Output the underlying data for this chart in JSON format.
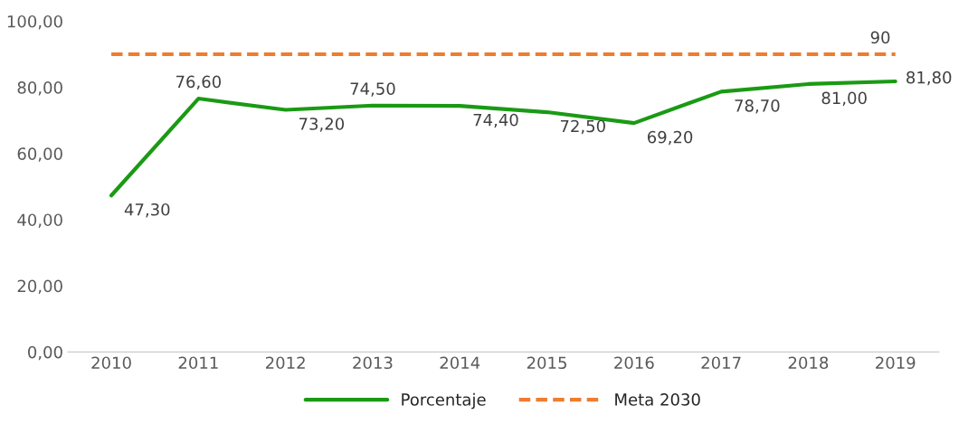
{
  "chart_data": {
    "type": "line",
    "categories": [
      "2010",
      "2011",
      "2012",
      "2013",
      "2014",
      "2015",
      "2016",
      "2017",
      "2018",
      "2019"
    ],
    "series": [
      {
        "name": "Porcentaje",
        "color": "#1a9a14",
        "line_style": "solid",
        "values": [
          47.3,
          76.6,
          73.2,
          74.5,
          74.4,
          72.5,
          69.2,
          78.7,
          81.0,
          81.8
        ],
        "value_labels": [
          "47,30",
          "76,60",
          "73,20",
          "74,50",
          "74,40",
          "72,50",
          "69,20",
          "78,70",
          "81,00",
          "81,80"
        ]
      },
      {
        "name": "Meta 2030",
        "color": "#ed7d31",
        "line_style": "dashed",
        "values": [
          90,
          90,
          90,
          90,
          90,
          90,
          90,
          90,
          90,
          90
        ],
        "value_labels": [
          null,
          null,
          null,
          null,
          null,
          null,
          null,
          null,
          null,
          "90"
        ]
      }
    ],
    "ylim": [
      0,
      100
    ],
    "yticks": [
      {
        "value": 0,
        "label": "0,00"
      },
      {
        "value": 20,
        "label": "20,00"
      },
      {
        "value": 40,
        "label": "40,00"
      },
      {
        "value": 60,
        "label": "60,00"
      },
      {
        "value": 80,
        "label": "80,00"
      },
      {
        "value": 100,
        "label": "100,00"
      }
    ],
    "grid": false,
    "legend": "bottom",
    "marker": "none"
  }
}
